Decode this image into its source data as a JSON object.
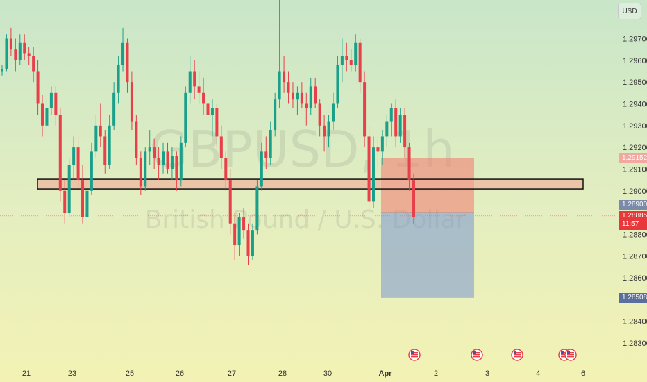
{
  "chart_data": {
    "type": "candlestick",
    "symbol_watermark": "GBPUSD, 1h",
    "watermark_subtitle": "British Pound / U.S. Dollar",
    "currency": "USD",
    "ylim": [
      1.2826,
      1.2989
    ],
    "y_ticks": [
      "1.29700",
      "1.29600",
      "1.29500",
      "1.29400",
      "1.29300",
      "1.29200",
      "1.29100",
      "1.29000",
      "1.28800",
      "1.28700",
      "1.28600",
      "1.28400",
      "1.28300"
    ],
    "x_ticks": [
      "21",
      "23",
      "25",
      "26",
      "27",
      "28",
      "30",
      "Apr",
      "2",
      "3",
      "4",
      "6"
    ],
    "price_labels": {
      "zone_top": "1.29152",
      "entry": "1.28900",
      "current_price": "1.28885",
      "countdown": "11:57",
      "stop": "1.28508"
    },
    "support_zone": [
      1.29005,
      1.2905
    ],
    "position": {
      "target": 1.29152,
      "entry": 1.289,
      "stop": 1.28508
    },
    "candles": [
      [
        1.2955,
        1.2958,
        1.2953,
        1.2956
      ],
      [
        1.2956,
        1.2972,
        1.2955,
        1.297
      ],
      [
        1.297,
        1.2975,
        1.2962,
        1.2965
      ],
      [
        1.2965,
        1.297,
        1.2955,
        1.296
      ],
      [
        1.296,
        1.2972,
        1.2958,
        1.2968
      ],
      [
        1.2968,
        1.2972,
        1.296,
        1.2963
      ],
      [
        1.2963,
        1.2966,
        1.2958,
        1.2962
      ],
      [
        1.2962,
        1.2966,
        1.295,
        1.2955
      ],
      [
        1.2955,
        1.296,
        1.2935,
        1.294
      ],
      [
        1.294,
        1.2944,
        1.2925,
        1.293
      ],
      [
        1.293,
        1.2942,
        1.2928,
        1.2938
      ],
      [
        1.2938,
        1.2948,
        1.2935,
        1.2945
      ],
      [
        1.2945,
        1.2948,
        1.293,
        1.2935
      ],
      [
        1.2935,
        1.2938,
        1.2895,
        1.29
      ],
      [
        1.29,
        1.2905,
        1.2885,
        1.289
      ],
      [
        1.289,
        1.2915,
        1.2888,
        1.2912
      ],
      [
        1.2912,
        1.2925,
        1.2905,
        1.292
      ],
      [
        1.292,
        1.2925,
        1.29,
        1.2905
      ],
      [
        1.2905,
        1.2912,
        1.2885,
        1.2888
      ],
      [
        1.2888,
        1.2905,
        1.2883,
        1.29
      ],
      [
        1.29,
        1.2922,
        1.2898,
        1.2918
      ],
      [
        1.2918,
        1.2935,
        1.2915,
        1.293
      ],
      [
        1.293,
        1.294,
        1.292,
        1.2925
      ],
      [
        1.2925,
        1.2928,
        1.2908,
        1.2912
      ],
      [
        1.2912,
        1.2935,
        1.291,
        1.293
      ],
      [
        1.293,
        1.295,
        1.2928,
        1.2945
      ],
      [
        1.2945,
        1.2962,
        1.294,
        1.2958
      ],
      [
        1.2958,
        1.2975,
        1.2955,
        1.2968
      ],
      [
        1.2968,
        1.297,
        1.2945,
        1.295
      ],
      [
        1.295,
        1.2955,
        1.2928,
        1.2932
      ],
      [
        1.2932,
        1.2935,
        1.2912,
        1.2915
      ],
      [
        1.2915,
        1.2918,
        1.2898,
        1.2902
      ],
      [
        1.2902,
        1.292,
        1.29,
        1.2918
      ],
      [
        1.2918,
        1.2928,
        1.2912,
        1.292
      ],
      [
        1.292,
        1.2924,
        1.291,
        1.2915
      ],
      [
        1.2915,
        1.292,
        1.2905,
        1.2912
      ],
      [
        1.2912,
        1.2922,
        1.2908,
        1.2918
      ],
      [
        1.2918,
        1.2922,
        1.2908,
        1.291
      ],
      [
        1.291,
        1.292,
        1.2905,
        1.2916
      ],
      [
        1.2916,
        1.2918,
        1.29,
        1.2905
      ],
      [
        1.2905,
        1.2925,
        1.2902,
        1.2922
      ],
      [
        1.2922,
        1.2948,
        1.292,
        1.2945
      ],
      [
        1.2945,
        1.2962,
        1.294,
        1.2955
      ],
      [
        1.2955,
        1.296,
        1.2942,
        1.2948
      ],
      [
        1.2948,
        1.2955,
        1.294,
        1.2945
      ],
      [
        1.2945,
        1.2952,
        1.2935,
        1.294
      ],
      [
        1.294,
        1.2945,
        1.293,
        1.2935
      ],
      [
        1.2935,
        1.2942,
        1.2925,
        1.2938
      ],
      [
        1.2938,
        1.294,
        1.292,
        1.2925
      ],
      [
        1.2925,
        1.293,
        1.291,
        1.2915
      ],
      [
        1.2915,
        1.2918,
        1.29,
        1.2905
      ],
      [
        1.2905,
        1.291,
        1.288,
        1.2885
      ],
      [
        1.2885,
        1.289,
        1.2868,
        1.2875
      ],
      [
        1.2875,
        1.289,
        1.287,
        1.2888
      ],
      [
        1.2888,
        1.2892,
        1.2878,
        1.2882
      ],
      [
        1.2882,
        1.2885,
        1.2866,
        1.287
      ],
      [
        1.287,
        1.2885,
        1.2868,
        1.2882
      ],
      [
        1.2882,
        1.2905,
        1.288,
        1.2902
      ],
      [
        1.2902,
        1.2922,
        1.29,
        1.2918
      ],
      [
        1.2918,
        1.2925,
        1.291,
        1.2915
      ],
      [
        1.2915,
        1.2932,
        1.2912,
        1.2928
      ],
      [
        1.2928,
        1.2945,
        1.2925,
        1.2942
      ],
      [
        1.2942,
        1.2988,
        1.2938,
        1.2955
      ],
      [
        1.2955,
        1.2962,
        1.2945,
        1.295
      ],
      [
        1.295,
        1.2955,
        1.294,
        1.2945
      ],
      [
        1.2945,
        1.295,
        1.2938,
        1.2942
      ],
      [
        1.2942,
        1.2948,
        1.2935,
        1.2945
      ],
      [
        1.2945,
        1.295,
        1.2938,
        1.294
      ],
      [
        1.294,
        1.2945,
        1.293,
        1.2938
      ],
      [
        1.2938,
        1.2952,
        1.2935,
        1.2948
      ],
      [
        1.2948,
        1.2952,
        1.2938,
        1.294
      ],
      [
        1.294,
        1.2942,
        1.2925,
        1.293
      ],
      [
        1.293,
        1.2935,
        1.2918,
        1.2925
      ],
      [
        1.2925,
        1.2935,
        1.292,
        1.2932
      ],
      [
        1.2932,
        1.2945,
        1.2928,
        1.294
      ],
      [
        1.294,
        1.2962,
        1.2938,
        1.2958
      ],
      [
        1.2958,
        1.297,
        1.295,
        1.2962
      ],
      [
        1.2962,
        1.2968,
        1.2955,
        1.296
      ],
      [
        1.296,
        1.2965,
        1.2955,
        1.2958
      ],
      [
        1.2958,
        1.2972,
        1.2955,
        1.2968
      ],
      [
        1.2968,
        1.297,
        1.2945,
        1.295
      ],
      [
        1.295,
        1.2955,
        1.292,
        1.2925
      ],
      [
        1.2925,
        1.293,
        1.289,
        1.2895
      ],
      [
        1.2895,
        1.2925,
        1.2892,
        1.292
      ],
      [
        1.292,
        1.2925,
        1.291,
        1.2918
      ],
      [
        1.2918,
        1.2928,
        1.2912,
        1.2925
      ],
      [
        1.2925,
        1.2935,
        1.292,
        1.2932
      ],
      [
        1.2932,
        1.294,
        1.2925,
        1.2938
      ],
      [
        1.2938,
        1.2942,
        1.292,
        1.2925
      ],
      [
        1.2925,
        1.2938,
        1.2922,
        1.2935
      ],
      [
        1.2935,
        1.2938,
        1.2915,
        1.292
      ],
      [
        1.292,
        1.2922,
        1.29,
        1.2905
      ],
      [
        1.2905,
        1.2908,
        1.2885,
        1.2888
      ]
    ]
  }
}
